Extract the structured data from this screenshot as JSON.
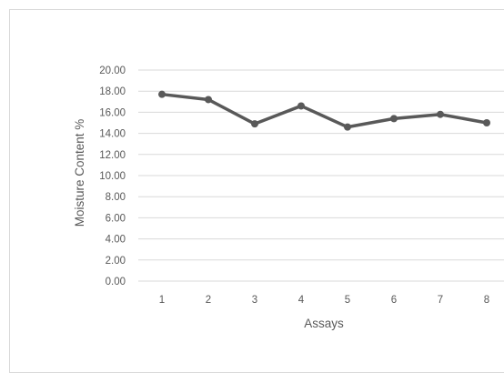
{
  "chart_data": {
    "type": "line",
    "title": "",
    "xlabel": "Assays",
    "ylabel": "Moisture Content %",
    "categories": [
      "1",
      "2",
      "3",
      "4",
      "5",
      "6",
      "7",
      "8"
    ],
    "series": [
      {
        "values": [
          17.7,
          17.2,
          14.9,
          16.6,
          14.6,
          15.4,
          15.8,
          15.0
        ]
      }
    ],
    "ylim": [
      0,
      20
    ],
    "y_ticks": [
      "0.00",
      "2.00",
      "4.00",
      "6.00",
      "8.00",
      "10.00",
      "12.00",
      "14.00",
      "16.00",
      "18.00",
      "20.00"
    ],
    "grid": true,
    "legend": "none",
    "line_color": "#595959",
    "gridline_color": "#d9d9d9"
  }
}
